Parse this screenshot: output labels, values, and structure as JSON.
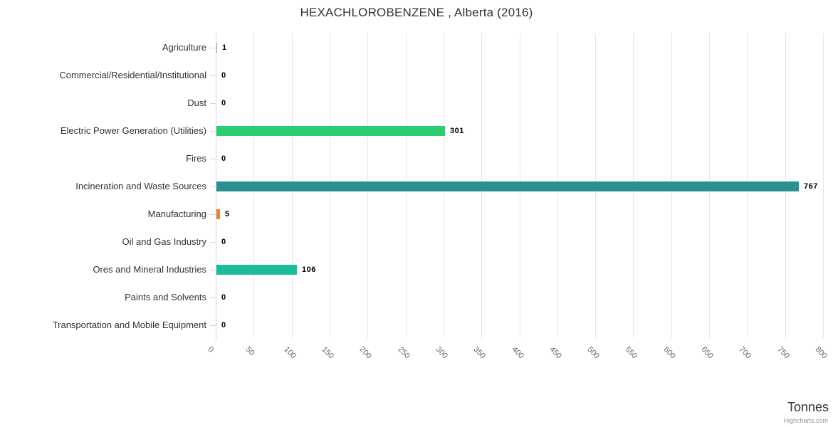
{
  "chart_data": {
    "type": "bar",
    "title": "HEXACHLOROBENZENE , Alberta (2016)",
    "categories": [
      "Agriculture",
      "Commercial/Residential/Institutional",
      "Dust",
      "Electric Power Generation (Utilities)",
      "Fires",
      "Incineration and Waste Sources",
      "Manufacturing",
      "Oil and Gas Industry",
      "Ores and Mineral Industries",
      "Paints and Solvents",
      "Transportation and Mobile Equipment"
    ],
    "values": [
      1,
      0,
      0,
      301,
      0,
      767,
      5,
      0,
      106,
      0,
      0
    ],
    "bar_colors": [
      "#7cb5ec",
      "#7cb5ec",
      "#7cb5ec",
      "#2ecc71",
      "#7cb5ec",
      "#2b908f",
      "#ee8432",
      "#7cb5ec",
      "#1abc9c",
      "#7cb5ec",
      "#7cb5ec"
    ],
    "xlabel": "Tonnes",
    "ylabel": "",
    "xlim": [
      0,
      800
    ],
    "x_ticks": [
      0,
      50,
      100,
      150,
      200,
      250,
      300,
      350,
      400,
      450,
      500,
      550,
      600,
      650,
      700,
      750,
      800
    ],
    "grid": true,
    "legend": "none",
    "credit": "Highcharts.com",
    "colors": {
      "grid": "#e6e6e6",
      "axis_line": "#ccd6eb",
      "title_text": "#333333",
      "category_text": "#333333",
      "tick_text": "#666666",
      "value_text": "#000000",
      "credit_text": "#999999"
    }
  }
}
